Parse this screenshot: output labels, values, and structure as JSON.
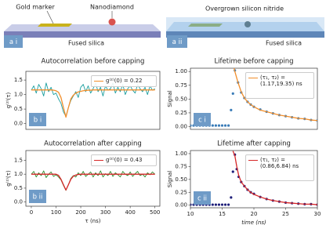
{
  "schematics": [
    {
      "label": "a i",
      "annotations": [
        "Gold marker",
        "Nanodiamond",
        "Fused silica"
      ]
    },
    {
      "label": "a ii",
      "annotations": [
        "Overgrown silicon nitride",
        "Fused silica"
      ]
    }
  ],
  "chart_data": [
    {
      "type": "line",
      "label": "b i",
      "title": "Autocorrelation before capping",
      "ylabel": "g⁽²⁾(τ)",
      "xlim": [
        -22,
        520
      ],
      "ylim": [
        -0.2,
        1.8
      ],
      "yticks": [
        {
          "value": 0,
          "label": "0.0"
        },
        0.5,
        {
          "value": 1,
          "label": "1.0"
        },
        1.5
      ],
      "legend": "upper right",
      "x": [
        0,
        10,
        20,
        30,
        40,
        50,
        60,
        70,
        80,
        90,
        100,
        110,
        120,
        130,
        140,
        150,
        160,
        170,
        180,
        190,
        200,
        210,
        220,
        230,
        240,
        250,
        260,
        270,
        280,
        290,
        300,
        310,
        320,
        330,
        340,
        350,
        360,
        370,
        380,
        390,
        400,
        410,
        420,
        430,
        440,
        450,
        460,
        470,
        480,
        490,
        500
      ],
      "series": [
        {
          "color": "#1a9e9e",
          "type": "line",
          "values": [
            1.15,
            1.3,
            1.05,
            1.35,
            1.2,
            0.95,
            1.4,
            1.1,
            1.25,
            1.0,
            1.05,
            0.85,
            0.7,
            0.4,
            0.25,
            0.55,
            0.8,
            0.95,
            1.1,
            0.9,
            1.25,
            1.35,
            1.1,
            1.3,
            1.05,
            1.2,
            1.4,
            1.1,
            1.25,
            0.95,
            1.3,
            1.15,
            1.2,
            1.4,
            1.05,
            1.25,
            1.1,
            1.35,
            1.0,
            1.2,
            1.3,
            1.15,
            1.05,
            1.35,
            1.2,
            1.1,
            1.25,
            1.0,
            1.3,
            1.15,
            1.2
          ]
        },
        {
          "name": "g⁽²⁾(0) = 0.22",
          "color": "#f28e2b",
          "type": "line",
          "values": [
            1.16,
            1.16,
            1.16,
            1.16,
            1.16,
            1.16,
            1.16,
            1.16,
            1.16,
            1.15,
            1.13,
            1.08,
            0.9,
            0.55,
            0.22,
            0.55,
            0.85,
            0.98,
            1.05,
            1.09,
            1.11,
            1.13,
            1.14,
            1.15,
            1.15,
            1.16,
            1.16,
            1.16,
            1.16,
            1.16,
            1.16,
            1.16,
            1.16,
            1.16,
            1.16,
            1.16,
            1.16,
            1.16,
            1.16,
            1.16,
            1.16,
            1.16,
            1.16,
            1.16,
            1.16,
            1.16,
            1.16,
            1.16,
            1.16,
            1.16,
            1.16
          ]
        }
      ]
    },
    {
      "type": "line",
      "label": "b ii",
      "title": "Autocorrelation after capping",
      "ylabel": "g⁽²⁾(τ)",
      "xlabel": "τ (ns)",
      "xlim": [
        -22,
        520
      ],
      "ylim": [
        -0.15,
        1.85
      ],
      "xticks": [
        0,
        100,
        200,
        300,
        400,
        500
      ],
      "yticks": [
        {
          "value": 0,
          "label": "0.0"
        },
        0.5,
        {
          "value": 1,
          "label": "1.0"
        },
        1.5
      ],
      "legend": "upper right",
      "x": [
        0,
        10,
        20,
        30,
        40,
        50,
        60,
        70,
        80,
        90,
        100,
        110,
        120,
        130,
        140,
        150,
        160,
        170,
        180,
        190,
        200,
        210,
        220,
        230,
        240,
        250,
        260,
        270,
        280,
        290,
        300,
        310,
        320,
        330,
        340,
        350,
        360,
        370,
        380,
        390,
        400,
        410,
        420,
        430,
        440,
        450,
        460,
        470,
        480,
        490,
        500
      ],
      "series": [
        {
          "color": "#2e8b2e",
          "type": "line",
          "values": [
            1.0,
            1.1,
            0.9,
            1.05,
            0.95,
            1.12,
            0.88,
            1.0,
            1.08,
            0.92,
            0.98,
            0.9,
            0.8,
            0.6,
            0.42,
            0.62,
            0.85,
            0.95,
            0.9,
            1.05,
            0.95,
            1.1,
            0.92,
            1.0,
            1.08,
            0.9,
            1.05,
            0.95,
            1.12,
            0.9,
            1.02,
            0.95,
            1.1,
            0.92,
            1.05,
            0.98,
            0.9,
            1.1,
            1.0,
            0.95,
            1.08,
            0.92,
            1.02,
            1.1,
            0.95,
            1.0,
            0.9,
            1.05,
            0.98,
            1.08,
            1.0
          ]
        },
        {
          "name": "g⁽²⁾(0) = 0.43",
          "color": "#d62728",
          "type": "line",
          "values": [
            1.0,
            1.0,
            1.0,
            1.0,
            1.0,
            1.0,
            1.0,
            1.0,
            1.0,
            1.0,
            1.0,
            0.96,
            0.82,
            0.62,
            0.43,
            0.62,
            0.82,
            0.93,
            0.97,
            0.99,
            1.0,
            1.0,
            1.0,
            1.0,
            1.0,
            1.0,
            1.0,
            1.0,
            1.0,
            1.0,
            1.0,
            1.0,
            1.0,
            1.0,
            1.0,
            1.0,
            1.0,
            1.0,
            1.0,
            1.0,
            1.0,
            1.0,
            1.0,
            1.0,
            1.0,
            1.0,
            1.0,
            1.0,
            1.0,
            1.0,
            1.0
          ]
        }
      ]
    },
    {
      "type": "scatter",
      "label": "c i",
      "title": "Lifetime before capping",
      "ylabel": "Signal",
      "xlim": [
        10,
        30
      ],
      "ylim": [
        -0.05,
        1.06
      ],
      "yticks": [
        {
          "value": 0,
          "label": "0.00"
        },
        0.25,
        {
          "value": 0.5,
          "label": "0.50"
        },
        0.75,
        {
          "value": 1,
          "label": "1.00"
        }
      ],
      "legend": "upper right",
      "series": [
        {
          "color": "#3a7cb8",
          "type": "scatter",
          "x": [
            10,
            10.5,
            11,
            11.5,
            12,
            12.5,
            13,
            13.5,
            14,
            14.5,
            15,
            15.5,
            16,
            16.4,
            16.7,
            17,
            17.5,
            18,
            18.5,
            19,
            19.5,
            20,
            21,
            22,
            23,
            24,
            25,
            26,
            27,
            28,
            29,
            30
          ],
          "values": [
            0.02,
            0.02,
            0.02,
            0.02,
            0.02,
            0.02,
            0.02,
            0.02,
            0.02,
            0.02,
            0.02,
            0.02,
            0.02,
            0.3,
            0.6,
            1.02,
            0.8,
            0.62,
            0.52,
            0.45,
            0.4,
            0.36,
            0.31,
            0.27,
            0.24,
            0.21,
            0.19,
            0.17,
            0.15,
            0.14,
            0.12,
            0.11
          ]
        },
        {
          "name": "(τ₁, τ₂) = (1.17,19.35) ns",
          "color": "#f28e2b",
          "type": "line",
          "x": [
            16.8,
            17,
            17.5,
            18,
            18.5,
            19,
            19.5,
            20,
            21,
            22,
            23,
            24,
            25,
            26,
            27,
            28,
            29,
            30
          ],
          "values": [
            1.1,
            1.0,
            0.8,
            0.63,
            0.52,
            0.45,
            0.4,
            0.36,
            0.3,
            0.27,
            0.24,
            0.21,
            0.19,
            0.17,
            0.15,
            0.14,
            0.12,
            0.11
          ]
        }
      ]
    },
    {
      "type": "scatter",
      "label": "c ii",
      "title": "Lifetime after capping",
      "ylabel": "Signal",
      "xlabel": "time (ns)",
      "xlim": [
        10,
        30
      ],
      "ylim": [
        -0.05,
        1.06
      ],
      "xticks": [
        10,
        15,
        20,
        25,
        30
      ],
      "yticks": [
        {
          "value": 0,
          "label": "0.00"
        },
        0.25,
        {
          "value": 0.5,
          "label": "0.50"
        },
        0.75,
        {
          "value": 1,
          "label": "1.00"
        }
      ],
      "legend": "upper right",
      "series": [
        {
          "color": "#1f1f7a",
          "type": "scatter",
          "x": [
            10,
            10.5,
            11,
            11.5,
            12,
            12.5,
            13,
            13.5,
            14,
            14.5,
            15,
            15.5,
            16,
            16.4,
            16.7,
            17,
            17.3,
            17.6,
            18,
            18.5,
            19,
            19.5,
            20,
            21,
            22,
            23,
            24,
            25,
            26,
            27,
            28,
            29,
            30
          ],
          "values": [
            0.01,
            0.01,
            0.01,
            0.01,
            0.01,
            0.01,
            0.01,
            0.01,
            0.01,
            0.01,
            0.01,
            0.01,
            0.01,
            0.15,
            0.65,
            0.98,
            0.7,
            0.55,
            0.45,
            0.37,
            0.3,
            0.25,
            0.22,
            0.16,
            0.12,
            0.09,
            0.07,
            0.05,
            0.04,
            0.03,
            0.02,
            0.02,
            0.01
          ]
        },
        {
          "name": "(τ₁, τ₂) = (0.86,6.84) ns",
          "color": "#d62728",
          "type": "line",
          "x": [
            16.7,
            17,
            17.3,
            17.6,
            18,
            18.5,
            19,
            19.5,
            20,
            21,
            22,
            23,
            24,
            25,
            26,
            27,
            28,
            29,
            30
          ],
          "values": [
            1.05,
            0.96,
            0.75,
            0.58,
            0.45,
            0.37,
            0.3,
            0.25,
            0.21,
            0.16,
            0.12,
            0.09,
            0.07,
            0.05,
            0.04,
            0.03,
            0.02,
            0.02,
            0.01
          ]
        }
      ]
    }
  ]
}
